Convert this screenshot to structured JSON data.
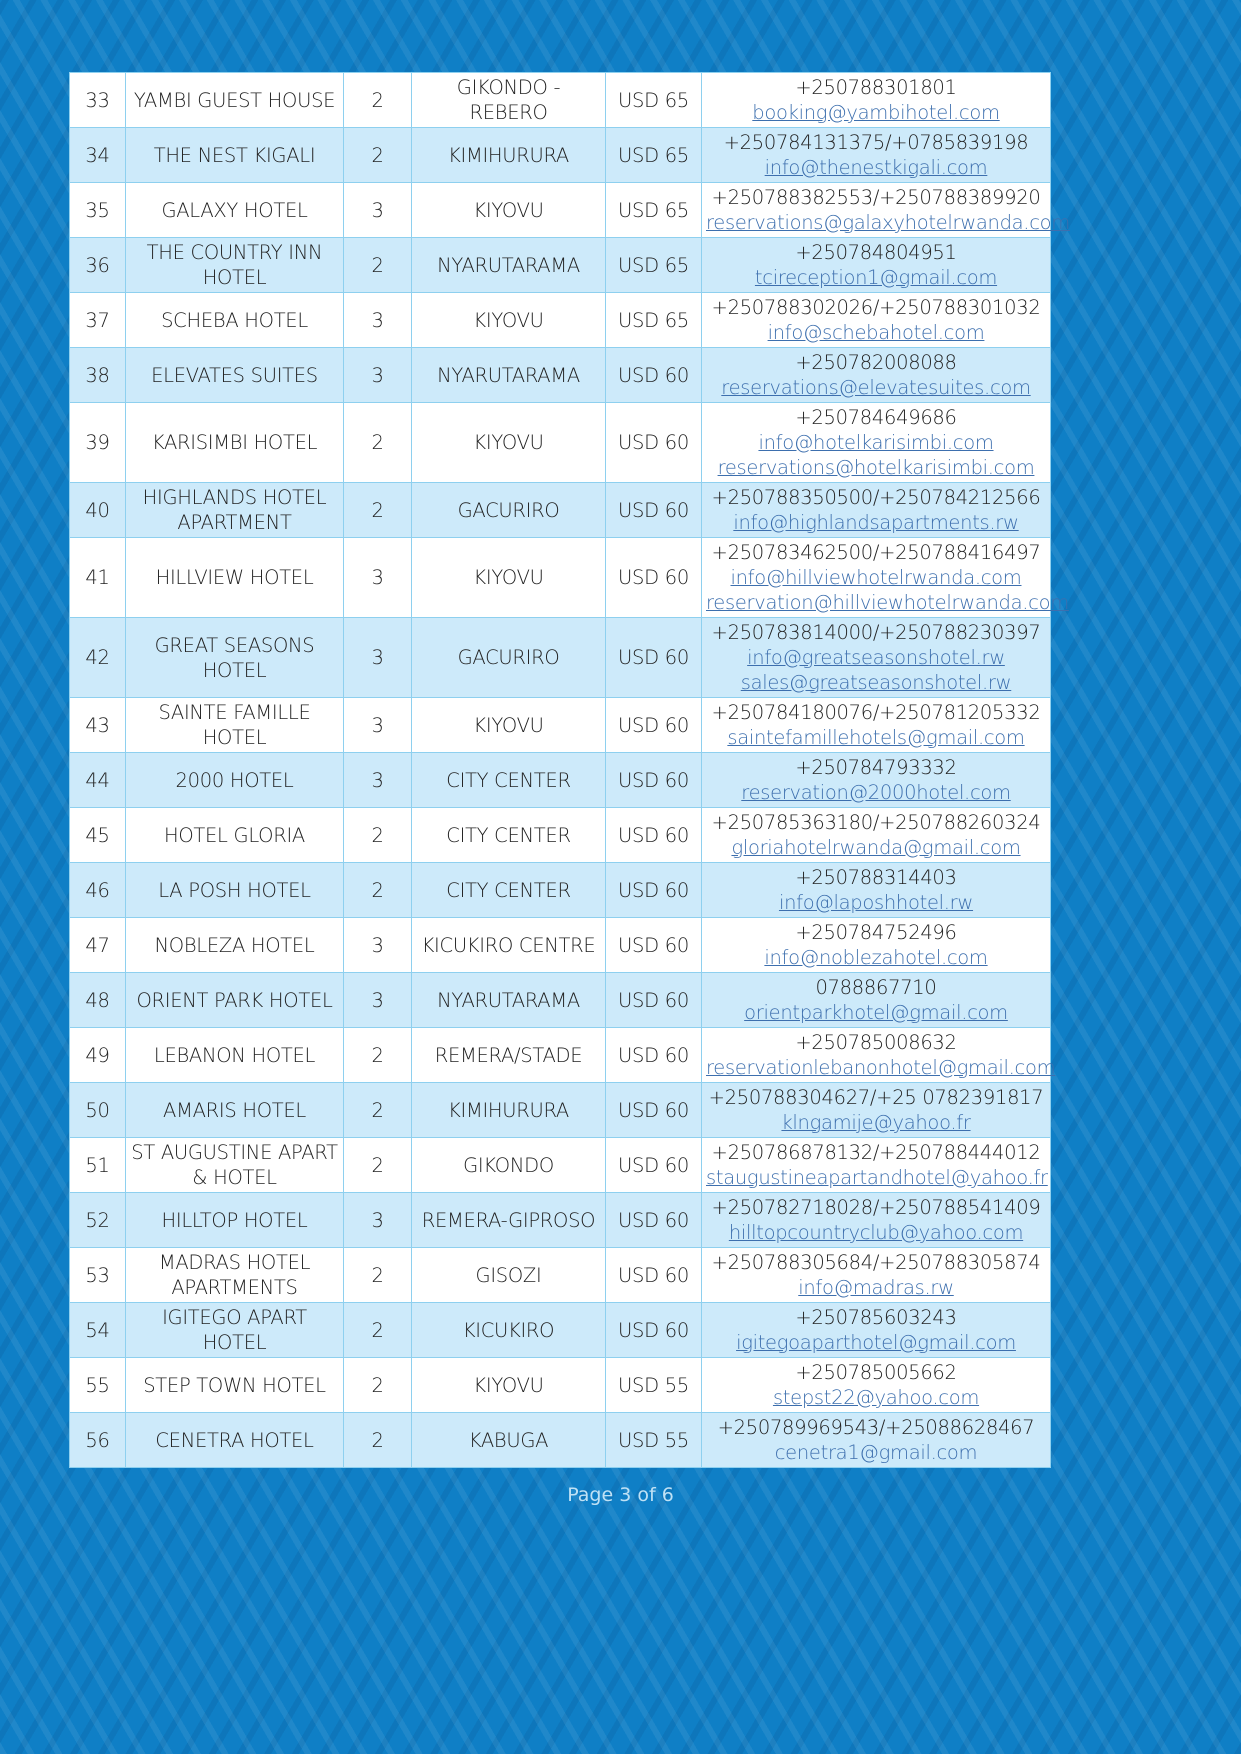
{
  "table": {
    "rows": [
      {
        "no": "33",
        "name": "YAMBI GUEST HOUSE",
        "rating": "2",
        "location": "GIKONDO - REBERO",
        "price": "USD 65",
        "phone": "+250788301801",
        "emails": [
          "booking@yambihotel.com"
        ]
      },
      {
        "no": "34",
        "name": "THE NEST KIGALI",
        "rating": "2",
        "location": "KIMIHURURA",
        "price": "USD 65",
        "phone": "+250784131375/+0785839198",
        "emails": [
          "info@thenestkigali.com"
        ]
      },
      {
        "no": "35",
        "name": "GALAXY HOTEL",
        "rating": "3",
        "location": "KIYOVU",
        "price": "USD 65",
        "phone": "+250788382553/+250788389920",
        "emails": [
          "reservations@galaxyhotelrwanda.com"
        ]
      },
      {
        "no": "36",
        "name": "THE COUNTRY INN HOTEL",
        "rating": "2",
        "location": "NYARUTARAMA",
        "price": "USD 65",
        "phone": "+250784804951",
        "emails": [
          "tcireception1@gmail.com"
        ]
      },
      {
        "no": "37",
        "name": "SCHEBA HOTEL",
        "rating": "3",
        "location": "KIYOVU",
        "price": "USD 65",
        "phone": "+250788302026/+250788301032",
        "emails": [
          "info@schebahotel.com"
        ]
      },
      {
        "no": "38",
        "name": "ELEVATES SUITES",
        "rating": "3",
        "location": "NYARUTARAMA",
        "price": "USD 60",
        "phone": "+250782008088",
        "emails": [
          "reservations@elevatesuites.com"
        ]
      },
      {
        "no": "39",
        "name": "KARISIMBI HOTEL",
        "rating": "2",
        "location": "KIYOVU",
        "price": "USD 60",
        "phone": "+250784649686",
        "emails": [
          "info@hotelkarisimbi.com",
          "reservations@hotelkarisimbi.com"
        ]
      },
      {
        "no": "40",
        "name": "HIGHLANDS HOTEL APARTMENT",
        "rating": "2",
        "location": "GACURIRO",
        "price": "USD 60",
        "phone": "+250788350500/+250784212566",
        "emails": [
          "info@highlandsapartments.rw"
        ]
      },
      {
        "no": "41",
        "name": "HILLVIEW HOTEL",
        "rating": "3",
        "location": "KIYOVU",
        "price": "USD 60",
        "phone": "+250783462500/+250788416497",
        "emails": [
          "info@hillviewhotelrwanda.com",
          "reservation@hillviewhotelrwanda.com"
        ]
      },
      {
        "no": "42",
        "name": "GREAT SEASONS HOTEL",
        "rating": "3",
        "location": "GACURIRO",
        "price": "USD 60",
        "phone": "+250783814000/+250788230397",
        "emails": [
          "info@greatseasonshotel.rw",
          "sales@greatseasonshotel.rw"
        ]
      },
      {
        "no": "43",
        "name": "SAINTE FAMILLE HOTEL",
        "rating": "3",
        "location": "KIYOVU",
        "price": "USD 60",
        "phone": "+250784180076/+250781205332",
        "emails": [
          "saintefamillehotels@gmail.com"
        ]
      },
      {
        "no": "44",
        "name": "2000 HOTEL",
        "rating": "3",
        "location": "CITY CENTER",
        "price": "USD 60",
        "phone": "+250784793332",
        "emails": [
          "reservation@2000hotel.com"
        ]
      },
      {
        "no": "45",
        "name": "HOTEL GLORIA",
        "rating": "2",
        "location": "CITY CENTER",
        "price": "USD 60",
        "phone": "+250785363180/+250788260324",
        "emails": [
          "gloriahotelrwanda@gmail.com"
        ]
      },
      {
        "no": "46",
        "name": "LA POSH HOTEL",
        "rating": "2",
        "location": "CITY CENTER",
        "price": "USD 60",
        "phone": "+250788314403",
        "emails": [
          "info@laposhhotel.rw"
        ]
      },
      {
        "no": "47",
        "name": "NOBLEZA HOTEL",
        "rating": "3",
        "location": "KICUKIRO CENTRE",
        "price": "USD 60",
        "phone": "+250784752496",
        "emails": [
          "info@noblezahotel.com"
        ]
      },
      {
        "no": "48",
        "name": "ORIENT PARK HOTEL",
        "rating": "3",
        "location": "NYARUTARAMA",
        "price": "USD 60",
        "phone": "0788867710",
        "emails": [
          "orientparkhotel@gmail.com"
        ]
      },
      {
        "no": "49",
        "name": "LEBANON HOTEL",
        "rating": "2",
        "location": "REMERA/STADE",
        "price": "USD 60",
        "phone": "+250785008632",
        "emails": [
          "reservationlebanonhotel@gmail.com"
        ]
      },
      {
        "no": "50",
        "name": "AMARIS HOTEL",
        "rating": "2",
        "location": "KIMIHURURA",
        "price": "USD 60",
        "phone": "+250788304627/+25 0782391817",
        "emails": [
          "klngamije@yahoo.fr"
        ]
      },
      {
        "no": "51",
        "name": "ST AUGUSTINE APART & HOTEL",
        "rating": "2",
        "location": "GIKONDO",
        "price": "USD 60",
        "phone": "+250786878132/+250788444012",
        "emails": [
          "staugustineapartandhotel@yahoo.fr"
        ]
      },
      {
        "no": "52",
        "name": "HILLTOP HOTEL",
        "rating": "3",
        "location": "REMERA-GIPROSO",
        "price": "USD 60",
        "phone": "+250782718028/+250788541409",
        "emails": [
          "hilltopcountryclub@yahoo.com"
        ]
      },
      {
        "no": "53",
        "name": "MADRAS HOTEL APARTMENTS",
        "rating": "2",
        "location": "GISOZI",
        "price": "USD 60",
        "phone": "+250788305684/+250788305874",
        "emails": [
          "info@madras.rw"
        ]
      },
      {
        "no": "54",
        "name": "IGITEGO APART HOTEL",
        "rating": "2",
        "location": "KICUKIRO",
        "price": "USD 60",
        "phone": "+250785603243",
        "emails": [
          "igitegoaparthotel@gmail.com"
        ]
      },
      {
        "no": "55",
        "name": "STEP TOWN HOTEL",
        "rating": "2",
        "location": "KIYOVU",
        "price": "USD 55",
        "phone": "+250785005662",
        "emails": [
          "stepst22@yahoo.com"
        ]
      },
      {
        "no": "56",
        "name": "CENETRA HOTEL",
        "rating": "2",
        "location": "KABUGA",
        "price": "USD 55",
        "phone": "+250789969543/+25088628467",
        "emails": [
          "cenetra1@gmail.com"
        ]
      }
    ]
  },
  "footer": {
    "page_label": "Page 3 of 6"
  },
  "colors": {
    "background": "#0f7fc6",
    "row_alt": "#cdeafa",
    "link": "#3d6fae",
    "border": "#8ed0ef"
  }
}
